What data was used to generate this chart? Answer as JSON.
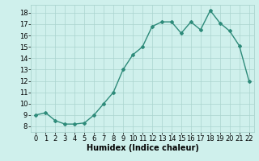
{
  "x": [
    0,
    1,
    2,
    3,
    4,
    5,
    6,
    7,
    8,
    9,
    10,
    11,
    12,
    13,
    14,
    15,
    16,
    17,
    18,
    19,
    20,
    21,
    22
  ],
  "y": [
    9.0,
    9.2,
    8.5,
    8.2,
    8.2,
    8.3,
    9.0,
    10.0,
    11.0,
    13.0,
    14.3,
    15.0,
    16.8,
    17.2,
    17.2,
    16.2,
    17.2,
    16.5,
    18.2,
    17.1,
    16.4,
    15.1,
    12.0
  ],
  "line_color": "#2e8b7a",
  "marker": "D",
  "markersize": 2.0,
  "linewidth": 1.0,
  "bg_color": "#cff0ec",
  "grid_color": "#aad4ce",
  "xlabel": "Humidex (Indice chaleur)",
  "xlabel_fontsize": 7,
  "tick_fontsize": 6,
  "xlim": [
    -0.5,
    22.5
  ],
  "ylim": [
    7.5,
    18.7
  ],
  "yticks": [
    8,
    9,
    10,
    11,
    12,
    13,
    14,
    15,
    16,
    17,
    18
  ],
  "xticks": [
    0,
    1,
    2,
    3,
    4,
    5,
    6,
    7,
    8,
    9,
    10,
    11,
    12,
    13,
    14,
    15,
    16,
    17,
    18,
    19,
    20,
    21,
    22
  ]
}
